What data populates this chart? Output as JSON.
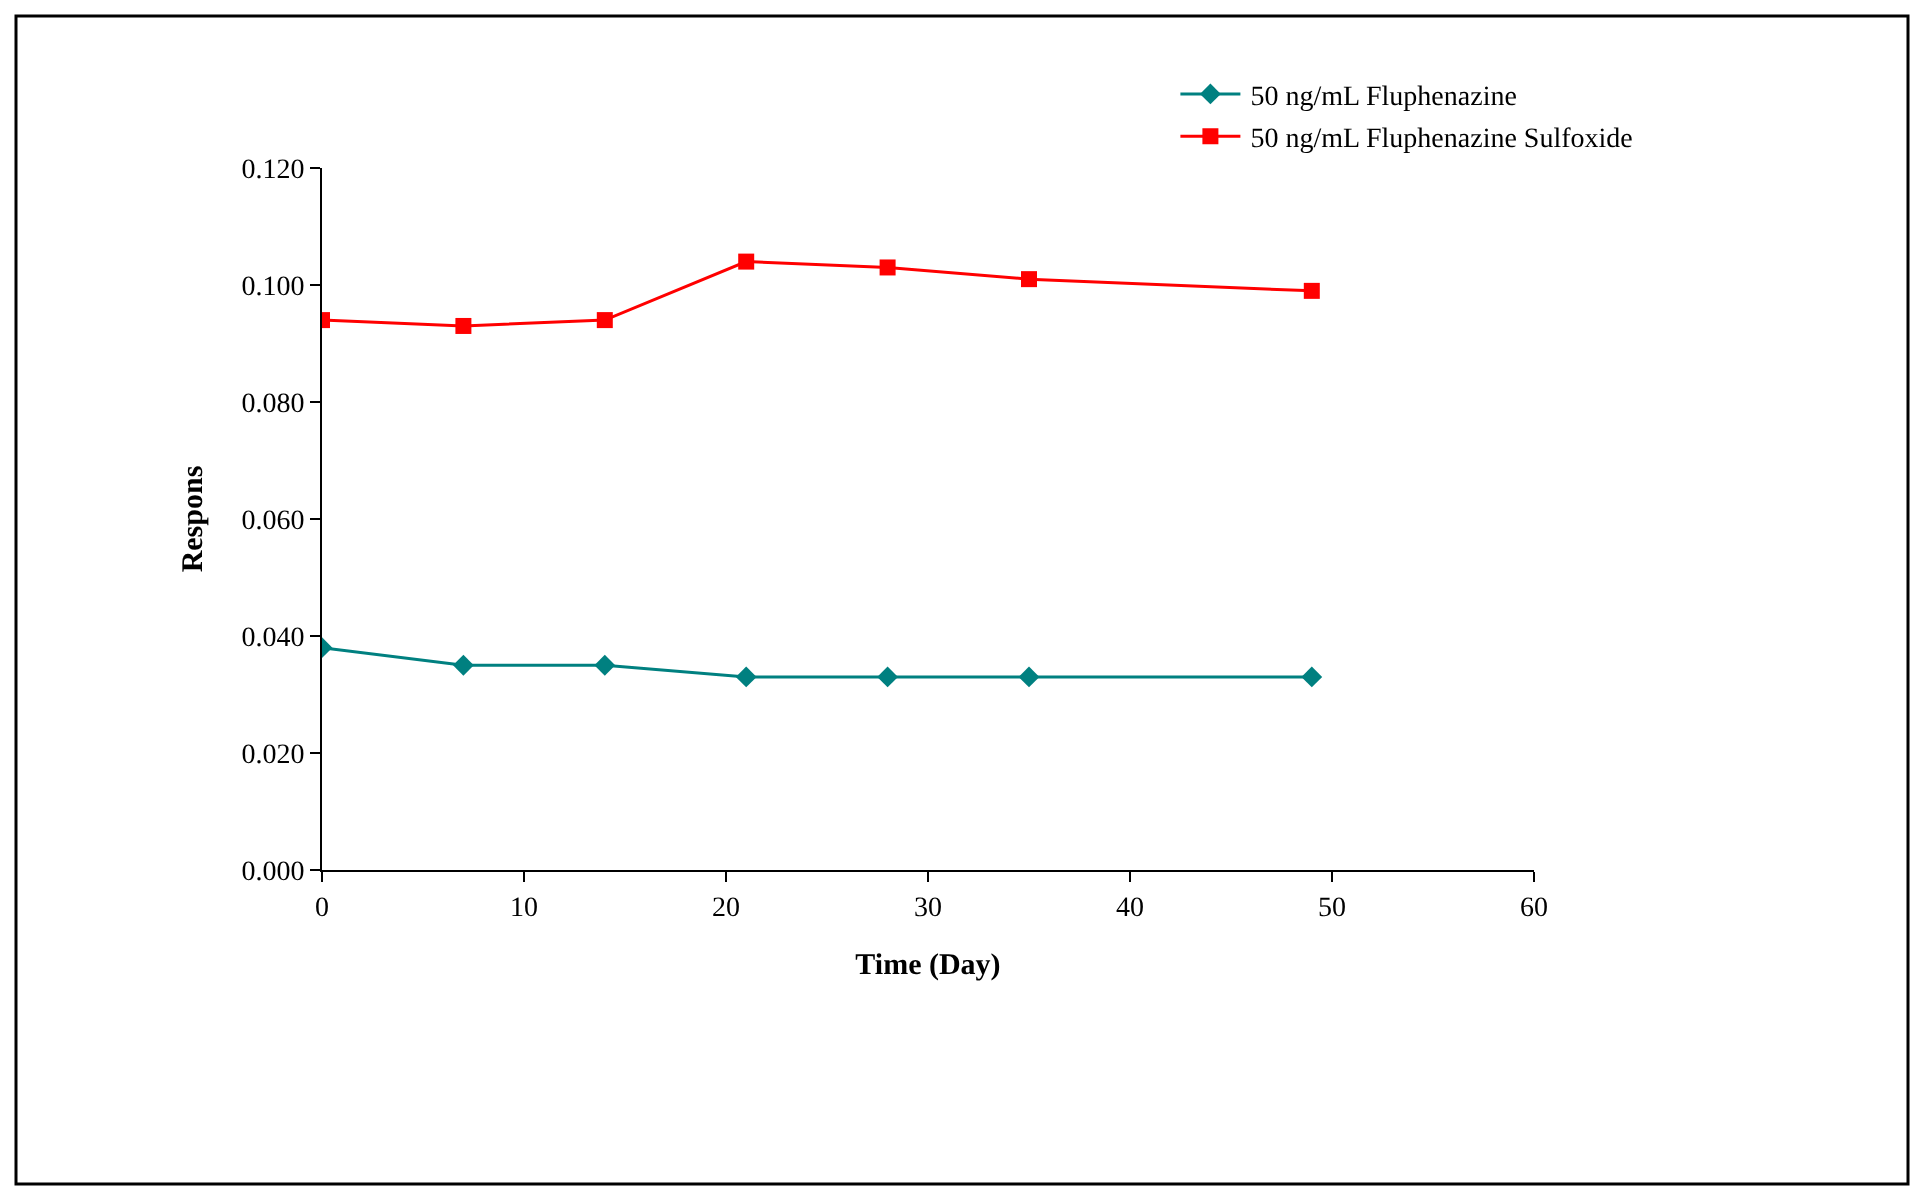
{
  "chart_data": {
    "type": "line",
    "xlabel": "Time (Day)",
    "ylabel": "Respons",
    "x": [
      0,
      7,
      14,
      21,
      28,
      35,
      49
    ],
    "series": [
      {
        "name": "50 ng/mL Fluphenazine",
        "color": "#008080",
        "marker": "diamond",
        "values": [
          0.038,
          0.035,
          0.035,
          0.033,
          0.033,
          0.033,
          0.033
        ]
      },
      {
        "name": "50 ng/mL Fluphenazine Sulfoxide",
        "color": "#ff0000",
        "marker": "square",
        "values": [
          0.094,
          0.093,
          0.094,
          0.104,
          0.103,
          0.101,
          0.099
        ]
      }
    ],
    "xlim": [
      0,
      60
    ],
    "xticks": [
      0,
      10,
      20,
      30,
      40,
      50,
      60
    ],
    "ylim": [
      0,
      0.12
    ],
    "yticks": [
      {
        "value": 0,
        "label": "0.000"
      },
      {
        "value": 0.02,
        "label": "0.020"
      },
      {
        "value": 0.04,
        "label": "0.040"
      },
      {
        "value": 0.06,
        "label": "0.060"
      },
      {
        "value": 0.08,
        "label": "0.080"
      },
      {
        "value": 0.1,
        "label": "0.100"
      },
      {
        "value": 0.12,
        "label": "0.120"
      }
    ],
    "legend": "top right",
    "line_style": "solid"
  }
}
